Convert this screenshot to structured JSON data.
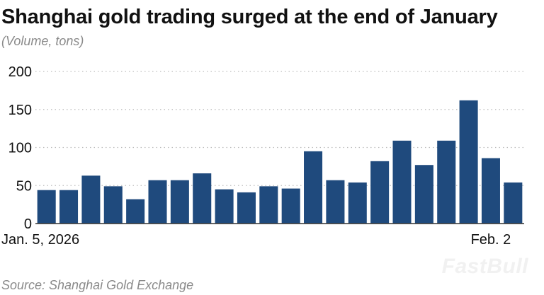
{
  "title": "Shanghai gold trading surged at the end of January",
  "subtitle": "(Volume, tons)",
  "source": "Source: Shanghai Gold Exchange",
  "watermark": "FastBull",
  "colors": {
    "bar": "#1f4a7d",
    "grid": "#bdbdbd",
    "text": "#111111",
    "muted": "#8a8a8a"
  },
  "chart_data": {
    "type": "bar",
    "title": "Shanghai gold trading surged at the end of January",
    "subtitle": "(Volume, tons)",
    "xlabel": "",
    "ylabel": "",
    "ylim": [
      0,
      200
    ],
    "yticks": [
      0,
      50,
      100,
      150,
      200
    ],
    "x_tick_labels": [
      {
        "index": 0,
        "label": "Jan. 5, 2026"
      },
      {
        "index": 20,
        "label": "Feb. 2"
      }
    ],
    "grid": true,
    "values": [
      44,
      44,
      63,
      49,
      32,
      57,
      57,
      66,
      45,
      41,
      49,
      46,
      95,
      57,
      54,
      82,
      109,
      77,
      109,
      162,
      86,
      54
    ]
  }
}
